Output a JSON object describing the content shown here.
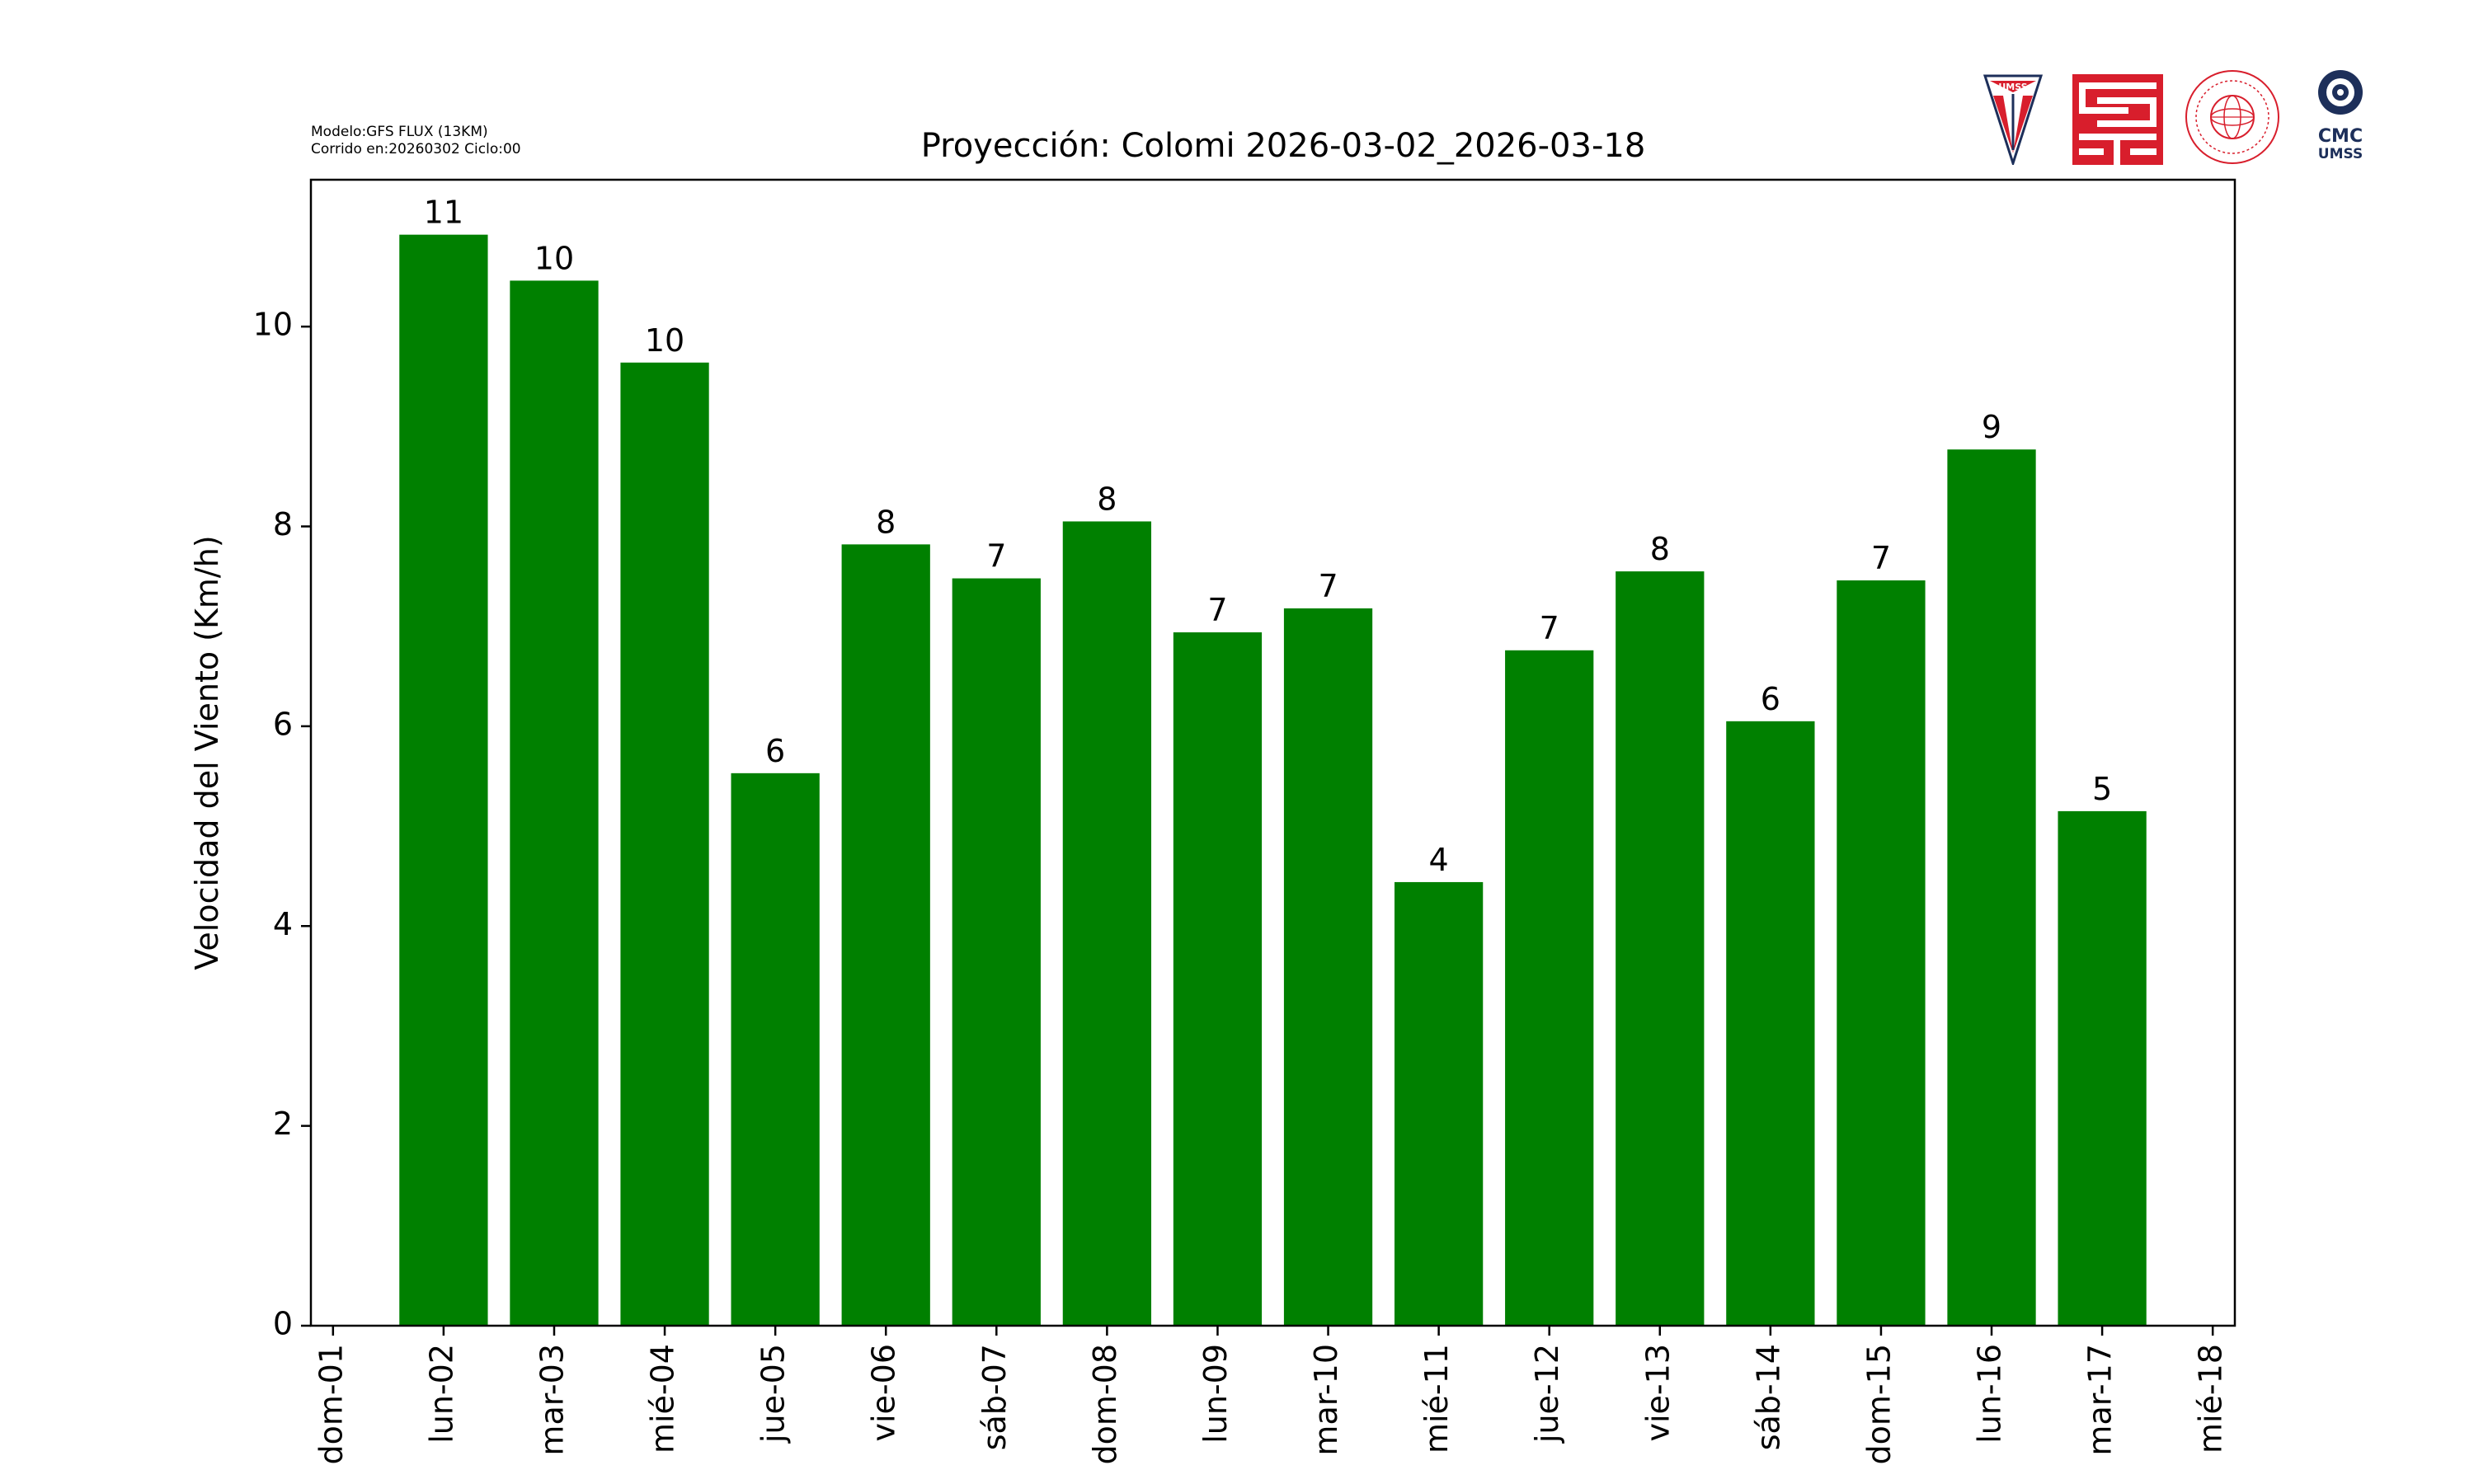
{
  "header": {
    "model_line1": "Modelo:GFS FLUX (13KM)",
    "model_line2": "Corrido en:20260302 Ciclo:00",
    "logo_cmc_line1": "CMC",
    "logo_cmc_line2": "UMSS",
    "logo_umss_text": "UMSS"
  },
  "colors": {
    "bar": "#008000",
    "text": "#000000",
    "frame": "#000000",
    "logo_red": "#d81e2c",
    "logo_navy": "#1d2f5a"
  },
  "chart_data": {
    "type": "bar",
    "title": "Proyección: Colomi  2026-03-02_2026-03-18",
    "xlabel": "",
    "ylabel": "Velocidad del Viento (Km/h)",
    "x_ticks": [
      "dom-01",
      "lun-02",
      "mar-03",
      "mié-04",
      "jue-05",
      "vie-06",
      "sáb-07",
      "dom-08",
      "lun-09",
      "mar-10",
      "mié-11",
      "jue-12",
      "vie-13",
      "sáb-14",
      "dom-15",
      "lun-16",
      "mar-17",
      "mié-18"
    ],
    "categories": [
      "lun-02",
      "mar-03",
      "mié-04",
      "jue-05",
      "vie-06",
      "sáb-07",
      "dom-08",
      "lun-09",
      "mar-10",
      "mié-11",
      "jue-12",
      "vie-13",
      "sáb-14",
      "dom-15",
      "lun-16",
      "mar-17"
    ],
    "values": [
      10.92,
      10.46,
      9.64,
      5.53,
      7.82,
      7.48,
      8.05,
      6.94,
      7.18,
      4.44,
      6.76,
      7.55,
      6.05,
      7.46,
      8.77,
      5.15
    ],
    "data_labels": [
      "11",
      "10",
      "10",
      "6",
      "8",
      "7",
      "8",
      "7",
      "7",
      "4",
      "7",
      "8",
      "6",
      "7",
      "9",
      "5"
    ],
    "y_ticks": [
      0,
      2,
      4,
      6,
      8,
      10
    ],
    "ylim": [
      0,
      11.47
    ],
    "grid": false,
    "legend": "none"
  }
}
